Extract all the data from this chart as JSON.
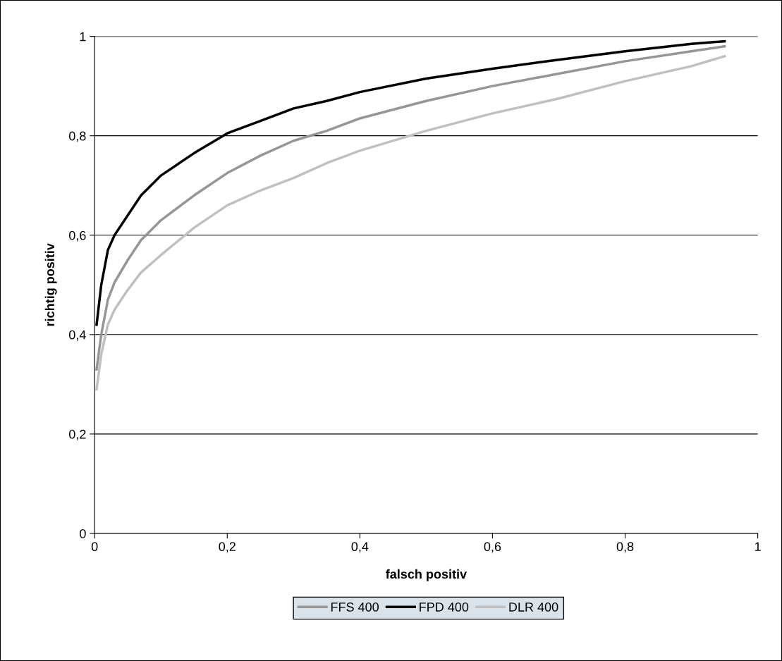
{
  "chart_data": {
    "type": "line",
    "xlabel": "falsch positiv",
    "ylabel": "richtig positiv",
    "xlim": [
      0,
      1
    ],
    "ylim": [
      0,
      1
    ],
    "xticks": [
      0,
      {
        "value": 0.2,
        "label": "0,2"
      },
      {
        "value": 0.4,
        "label": "0,4"
      },
      {
        "value": 0.6,
        "label": "0,6"
      },
      {
        "value": 0.8,
        "label": "0,8"
      },
      1
    ],
    "yticks": [
      0,
      {
        "value": 0.2,
        "label": "0,2"
      },
      {
        "value": 0.4,
        "label": "0,4"
      },
      {
        "value": 0.6,
        "label": "0,6"
      },
      {
        "value": 0.8,
        "label": "0,8"
      },
      1
    ],
    "grid": "y",
    "legend": "bottom",
    "marker": "none",
    "line_style": "solid",
    "series": [
      {
        "name": "FFS 400",
        "color": "#969696",
        "x": [
          0.003,
          0.01,
          0.02,
          0.03,
          0.05,
          0.07,
          0.1,
          0.15,
          0.2,
          0.25,
          0.3,
          0.35,
          0.4,
          0.5,
          0.6,
          0.7,
          0.8,
          0.9,
          0.95
        ],
        "values": [
          0.33,
          0.4,
          0.47,
          0.505,
          0.55,
          0.59,
          0.63,
          0.68,
          0.725,
          0.76,
          0.79,
          0.81,
          0.835,
          0.87,
          0.9,
          0.925,
          0.95,
          0.97,
          0.98
        ]
      },
      {
        "name": "FPD 400",
        "color": "#000000",
        "x": [
          0.003,
          0.01,
          0.02,
          0.03,
          0.05,
          0.07,
          0.1,
          0.15,
          0.2,
          0.25,
          0.3,
          0.35,
          0.4,
          0.5,
          0.6,
          0.7,
          0.8,
          0.9,
          0.95
        ],
        "values": [
          0.42,
          0.5,
          0.57,
          0.6,
          0.64,
          0.68,
          0.72,
          0.765,
          0.805,
          0.83,
          0.855,
          0.87,
          0.888,
          0.915,
          0.935,
          0.953,
          0.97,
          0.985,
          0.99
        ]
      },
      {
        "name": "DLR 400",
        "color": "#c0c0c0",
        "x": [
          0.003,
          0.01,
          0.02,
          0.03,
          0.05,
          0.07,
          0.1,
          0.15,
          0.2,
          0.25,
          0.3,
          0.35,
          0.4,
          0.5,
          0.6,
          0.7,
          0.8,
          0.9,
          0.95
        ],
        "values": [
          0.29,
          0.36,
          0.42,
          0.45,
          0.49,
          0.525,
          0.56,
          0.615,
          0.66,
          0.69,
          0.715,
          0.745,
          0.77,
          0.81,
          0.845,
          0.875,
          0.91,
          0.94,
          0.96
        ]
      }
    ]
  }
}
